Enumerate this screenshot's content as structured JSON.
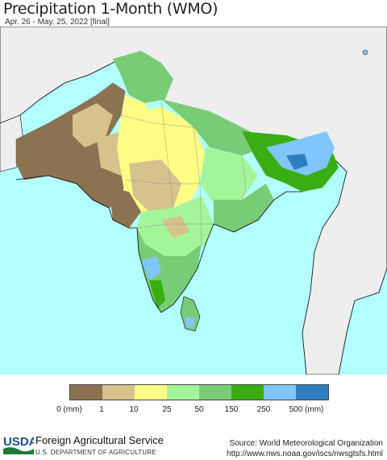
{
  "header": {
    "title": "Precipitation 1-Month (WMO)",
    "subtitle": "Apr. 26 - May. 25, 2022 [final]"
  },
  "legend": {
    "colors": [
      "#8c7250",
      "#d6c28c",
      "#fdfc84",
      "#a3f59a",
      "#79cc76",
      "#39ad12",
      "#80c5fb",
      "#2f7fc0"
    ],
    "labels": [
      "0 (mm)",
      "1",
      "10",
      "25",
      "50",
      "150",
      "250",
      "500 (mm)"
    ]
  },
  "map": {
    "ocean_color": "#b3ffff",
    "land_outside_color": "#eeeeee",
    "border_color": "#000000"
  },
  "footer": {
    "logo_text": "USDA",
    "agency": "Foreign Agricultural Service",
    "department": "U.S. DEPARTMENT OF AGRICULTURE",
    "source": "Source: World Meteorological Organization",
    "url": "http://www.nws.noaa.gov/iscs/nwsgtsfs.html"
  }
}
